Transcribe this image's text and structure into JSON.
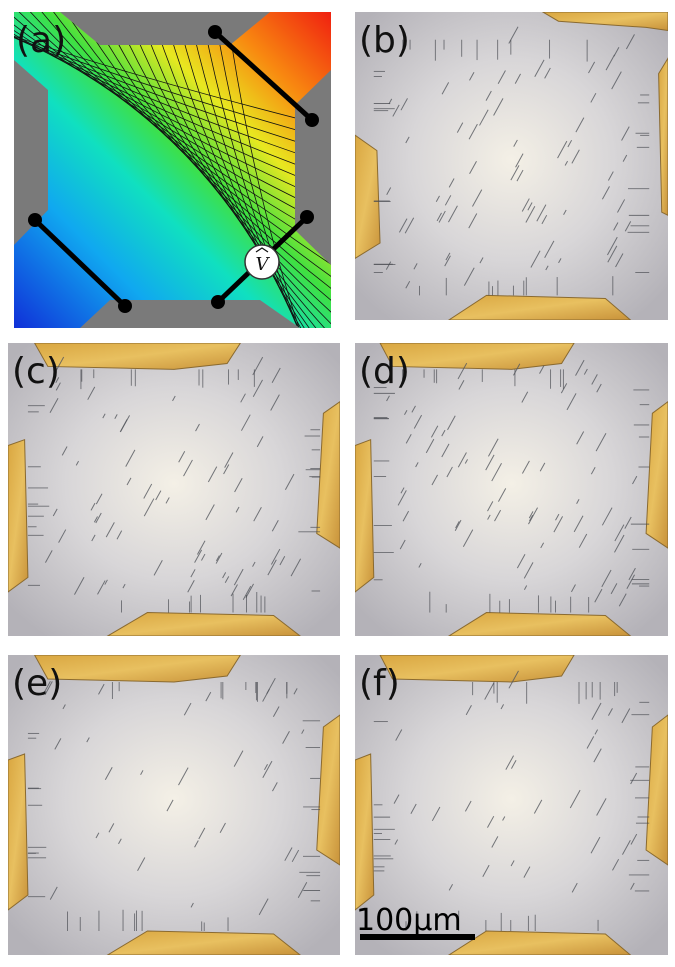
{
  "panels": [
    {
      "label": "(a)"
    },
    {
      "label": "(b)"
    },
    {
      "label": "(c)"
    },
    {
      "label": "(d)"
    },
    {
      "label": "(e)"
    },
    {
      "label": "(f)"
    }
  ],
  "voltmeter": {
    "label": "V"
  },
  "scale_bar": {
    "label": "100μm"
  }
}
